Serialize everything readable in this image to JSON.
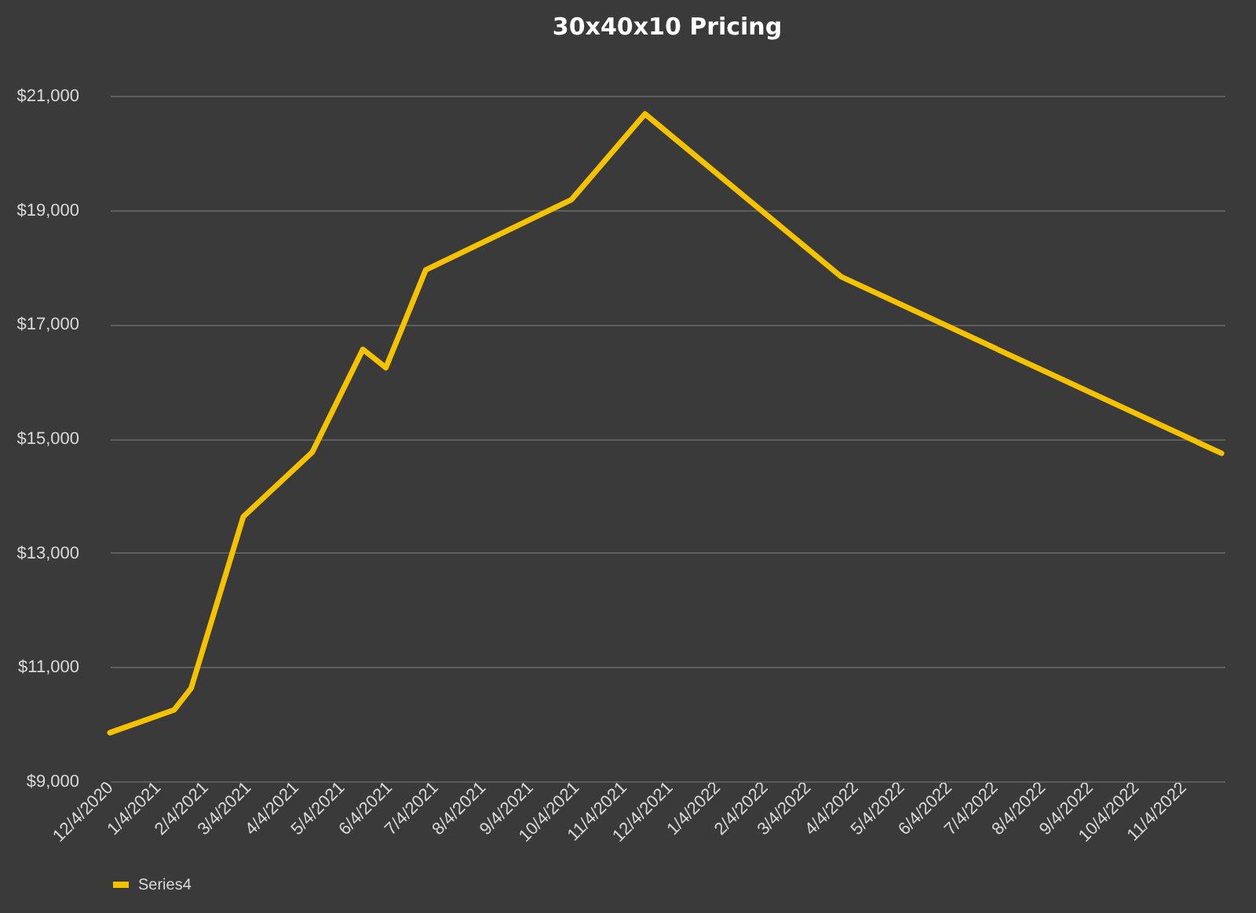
{
  "chart_data": {
    "type": "line",
    "title": "30x40x10 Pricing",
    "x": [
      "2020-12-04",
      "2021-01-15",
      "2021-01-26",
      "2021-03-01",
      "2021-04-15",
      "2021-05-18",
      "2021-06-02",
      "2021-06-28",
      "2021-10-01",
      "2021-11-18",
      "2022-03-26",
      "2022-11-29"
    ],
    "series": [
      {
        "name": "Series4",
        "color": "#f5c200",
        "values": [
          9850,
          10250,
          10630,
          13630,
          14760,
          16560,
          16240,
          17950,
          19180,
          20680,
          17830,
          14740
        ]
      }
    ],
    "xlim": [
      "2020-12-04",
      "2022-12-01"
    ],
    "xticks": [
      {
        "value": "2020-12-04",
        "label": "12/4/2020"
      },
      {
        "value": "2021-01-04",
        "label": "1/4/2021"
      },
      {
        "value": "2021-02-04",
        "label": "2/4/2021"
      },
      {
        "value": "2021-03-04",
        "label": "3/4/2021"
      },
      {
        "value": "2021-04-04",
        "label": "4/4/2021"
      },
      {
        "value": "2021-05-04",
        "label": "5/4/2021"
      },
      {
        "value": "2021-06-04",
        "label": "6/4/2021"
      },
      {
        "value": "2021-07-04",
        "label": "7/4/2021"
      },
      {
        "value": "2021-08-04",
        "label": "8/4/2021"
      },
      {
        "value": "2021-09-04",
        "label": "9/4/2021"
      },
      {
        "value": "2021-10-04",
        "label": "10/4/2021"
      },
      {
        "value": "2021-11-04",
        "label": "11/4/2021"
      },
      {
        "value": "2021-12-04",
        "label": "12/4/2021"
      },
      {
        "value": "2022-01-04",
        "label": "1/4/2022"
      },
      {
        "value": "2022-02-04",
        "label": "2/4/2022"
      },
      {
        "value": "2022-03-04",
        "label": "3/4/2022"
      },
      {
        "value": "2022-04-04",
        "label": "4/4/2022"
      },
      {
        "value": "2022-05-04",
        "label": "5/4/2022"
      },
      {
        "value": "2022-06-04",
        "label": "6/4/2022"
      },
      {
        "value": "2022-07-04",
        "label": "7/4/2022"
      },
      {
        "value": "2022-08-04",
        "label": "8/4/2022"
      },
      {
        "value": "2022-09-04",
        "label": "9/4/2022"
      },
      {
        "value": "2022-10-04",
        "label": "10/4/2022"
      },
      {
        "value": "2022-11-04",
        "label": "11/4/2022"
      }
    ],
    "ylim": [
      9000,
      21000
    ],
    "yticks": [
      {
        "value": 9000,
        "label": "$9,000"
      },
      {
        "value": 11000,
        "label": "$11,000"
      },
      {
        "value": 13000,
        "label": "$13,000"
      },
      {
        "value": 15000,
        "label": "$15,000"
      },
      {
        "value": 17000,
        "label": "$17,000"
      },
      {
        "value": 19000,
        "label": "$19,000"
      },
      {
        "value": 21000,
        "label": "$21,000"
      }
    ],
    "grid": "y",
    "legend": "bottom",
    "line_style": "solid"
  }
}
